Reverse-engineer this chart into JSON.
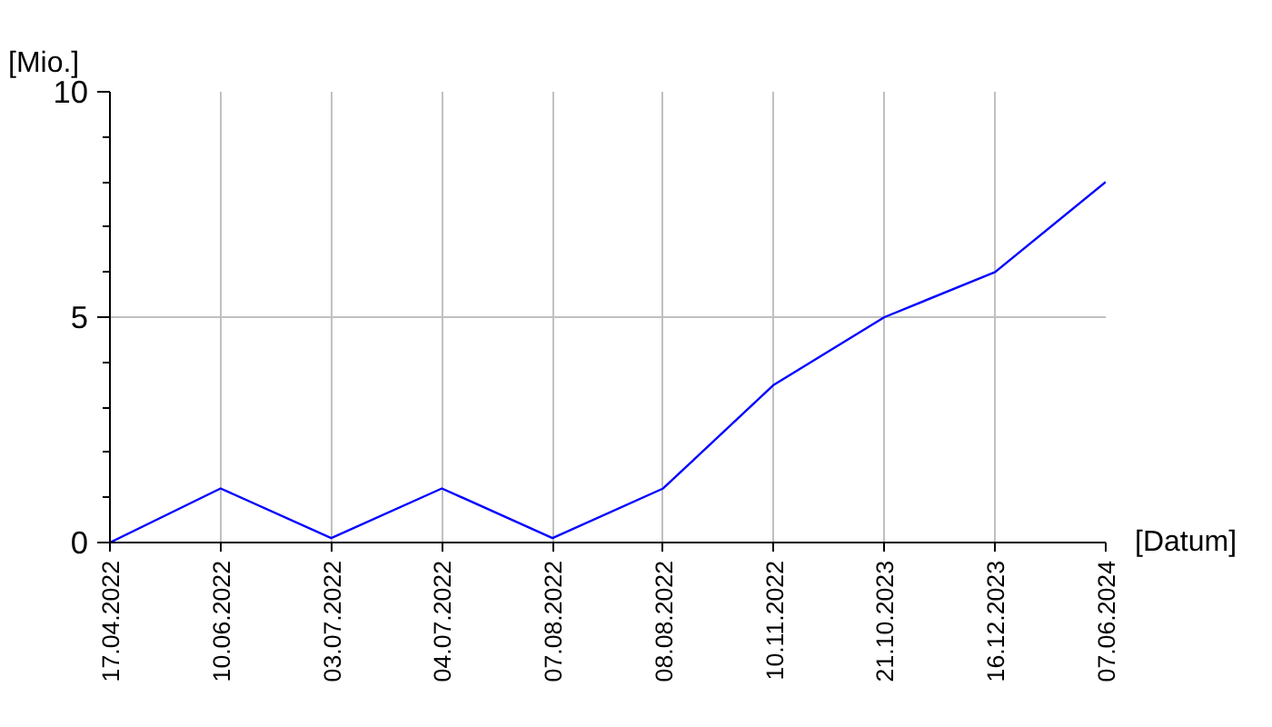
{
  "chart_data": {
    "type": "line",
    "ylabel": "[Mio.]",
    "xlabel": "[Datum]",
    "categories": [
      "17.04.2022",
      "10.06.2022",
      "03.07.2022",
      "04.07.2022",
      "07.08.2022",
      "08.08.2022",
      "10.11.2022",
      "21.10.2023",
      "16.12.2023",
      "07.06.2024"
    ],
    "series": [
      {
        "color": "#0000ff",
        "values": [
          0,
          1.2,
          0.1,
          1.2,
          0.1,
          1.2,
          3.5,
          5,
          6,
          8
        ]
      }
    ],
    "ylim": [
      0,
      10
    ],
    "yticks": [
      0,
      {
        "value": 1,
        "label": null
      },
      {
        "value": 2,
        "label": null
      },
      {
        "value": 3,
        "label": null
      },
      {
        "value": 4,
        "label": null
      },
      5,
      {
        "value": 6,
        "label": null
      },
      {
        "value": 7,
        "label": null
      },
      {
        "value": 8,
        "label": null
      },
      {
        "value": 9,
        "label": null
      },
      10
    ],
    "grid": true,
    "marker": "none",
    "line_style": "solid"
  }
}
